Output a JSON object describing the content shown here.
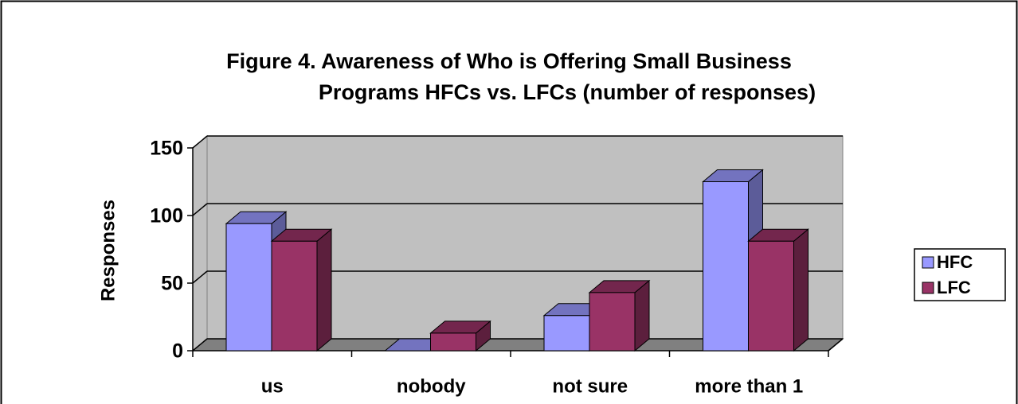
{
  "chart_data": {
    "type": "bar",
    "title": [
      "Figure 4. Awareness of Who is Offering Small Business",
      "Programs HFCs vs. LFCs (number of responses)"
    ],
    "y_label": "Responses",
    "categories": [
      "us",
      "nobody",
      "not sure",
      "more than 1"
    ],
    "series": [
      {
        "name": "HFC",
        "color": "#9999ff",
        "values": [
          94,
          0,
          26,
          125
        ]
      },
      {
        "name": "LFC",
        "color": "#993366",
        "values": [
          81,
          13,
          43,
          81
        ]
      }
    ],
    "ylim": [
      0,
      150
    ],
    "yticks": [
      0,
      50,
      100,
      150
    ],
    "grid": true,
    "legend": "right"
  }
}
